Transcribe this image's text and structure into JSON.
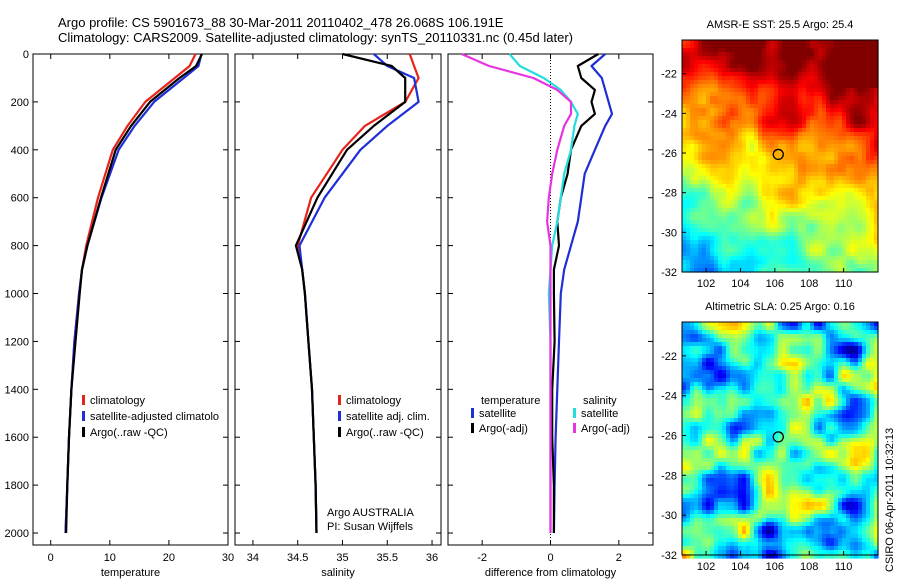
{
  "title": {
    "line1": "Argo profile: CS 5901673_88 30-Mar-2011 20110402_478 26.068S 106.191E",
    "line2": "Climatology: CARS2009. Satellite-adjusted climatology: synTS_20110331.nc (0.45d later)"
  },
  "side_label": "CSIRO 06-Apr-2011 10:32:13",
  "colors": {
    "climatology": "#e8231a",
    "satellite": "#1f2fd6",
    "argo": "#000000",
    "sal_satellite": "#22dede",
    "sal_argo": "#e834e0"
  },
  "chart_data": [
    {
      "type": "line",
      "id": "temperature",
      "xlabel": "temperature",
      "ylabel": "",
      "xlim": [
        -3,
        30
      ],
      "ylim": [
        2050,
        0
      ],
      "xticks": [
        0,
        10,
        20,
        30
      ],
      "yticks": [
        0,
        200,
        400,
        600,
        800,
        1000,
        1200,
        1400,
        1600,
        1800,
        2000
      ],
      "y": [
        0,
        50,
        100,
        200,
        300,
        400,
        600,
        800,
        900,
        1000,
        1200,
        1400,
        1600,
        1800,
        2000
      ],
      "series": [
        {
          "name": "climatology",
          "color": "#e8231a",
          "values": [
            24.5,
            23.5,
            21.0,
            16.0,
            13.0,
            10.5,
            8.0,
            6.0,
            5.3,
            4.8,
            4.0,
            3.5,
            3.1,
            2.8,
            2.5
          ]
        },
        {
          "name": "satellite-adjusted climatology",
          "color": "#1f2fd6",
          "values": [
            25.5,
            25.0,
            22.5,
            17.5,
            14.2,
            11.5,
            8.6,
            6.2,
            5.3,
            4.8,
            4.0,
            3.5,
            3.1,
            2.8,
            2.5
          ]
        },
        {
          "name": "Argo(..raw -QC)",
          "color": "#000000",
          "values": [
            25.6,
            24.6,
            21.8,
            16.8,
            13.6,
            11.0,
            8.5,
            6.2,
            5.3,
            4.9,
            4.2,
            3.5,
            3.1,
            2.8,
            2.6
          ]
        }
      ],
      "legend": {
        "position": "lower-right",
        "entries": [
          "climatology",
          "satellite-adjusted climatolo",
          "Argo(..raw -QC)"
        ]
      }
    },
    {
      "type": "line",
      "id": "salinity",
      "xlabel": "salinity",
      "xlim": [
        33.8,
        36.1
      ],
      "ylim": [
        2050,
        0
      ],
      "xticks": [
        34,
        34.5,
        35,
        35.5,
        36
      ],
      "y": [
        0,
        50,
        100,
        200,
        300,
        400,
        600,
        800,
        900,
        1000,
        1200,
        1400,
        1600,
        1800,
        2000
      ],
      "series": [
        {
          "name": "climatology",
          "color": "#e8231a",
          "values": [
            35.75,
            35.8,
            35.85,
            35.7,
            35.25,
            35.0,
            34.65,
            34.5,
            34.55,
            34.58,
            34.62,
            34.66,
            34.68,
            34.7,
            34.71
          ]
        },
        {
          "name": "satellite adj. clim.",
          "color": "#1f2fd6",
          "values": [
            35.35,
            35.5,
            35.8,
            35.85,
            35.5,
            35.2,
            34.8,
            34.52,
            34.55,
            34.58,
            34.62,
            34.66,
            34.68,
            34.7,
            34.71
          ]
        },
        {
          "name": "Argo(..raw -QC)",
          "color": "#000000",
          "values": [
            35.0,
            35.55,
            35.7,
            35.7,
            35.35,
            35.05,
            34.72,
            34.48,
            34.55,
            34.58,
            34.62,
            34.66,
            34.68,
            34.7,
            34.71
          ]
        }
      ],
      "legend": {
        "position": "lower-right",
        "entries": [
          "climatology",
          "satellite adj. clim.",
          "Argo(..raw -QC)"
        ]
      },
      "annotation": [
        "Argo AUSTRALIA",
        "PI: Susan Wijffels"
      ]
    },
    {
      "type": "line",
      "id": "difference",
      "xlabel": "difference from climatology",
      "xlim": [
        -3,
        3
      ],
      "ylim": [
        2050,
        0
      ],
      "xticks": [
        -2,
        0,
        2
      ],
      "y": [
        0,
        50,
        100,
        150,
        200,
        250,
        300,
        400,
        500,
        600,
        700,
        800,
        900,
        1000,
        1200,
        1400,
        1600,
        1800,
        2000
      ],
      "series": [
        {
          "name": "temperature satellite",
          "color": "#1f2fd6",
          "values": [
            1.6,
            1.2,
            1.5,
            1.6,
            1.7,
            1.8,
            1.6,
            1.3,
            1.0,
            0.9,
            0.8,
            0.6,
            0.4,
            0.3,
            0.25,
            0.2,
            0.15,
            0.12,
            0.1
          ]
        },
        {
          "name": "temperature Argo(-adj)",
          "color": "#000000",
          "values": [
            1.4,
            0.8,
            0.9,
            1.3,
            1.2,
            1.3,
            0.9,
            0.6,
            0.5,
            0.3,
            0.2,
            0.25,
            0.1,
            0.1,
            0.12,
            0.05,
            0.05,
            0.1,
            0.1
          ]
        },
        {
          "name": "salinity satellite",
          "color": "#22dede",
          "values": [
            -1.2,
            -0.9,
            -0.2,
            0.3,
            0.6,
            0.8,
            0.7,
            0.6,
            0.4,
            0.3,
            0.2,
            0.05,
            0.0,
            -0.05,
            0.0,
            0.0,
            0.0,
            0.0,
            0.0
          ]
        },
        {
          "name": "salinity Argo(-adj)",
          "color": "#e834e0",
          "values": [
            -2.6,
            -1.8,
            -0.5,
            0.2,
            0.6,
            0.6,
            0.4,
            0.2,
            0.05,
            -0.05,
            -0.1,
            0.0,
            0.0,
            0.0,
            0.0,
            0.0,
            0.0,
            0.0,
            0.0
          ]
        }
      ],
      "legend": {
        "position": "lower-left",
        "headers": [
          "temperature",
          "salinity"
        ],
        "entries": [
          "satellite",
          "Argo(-adj)",
          "satellite",
          "Argo(-adj)"
        ]
      }
    },
    {
      "type": "heatmap",
      "id": "sst",
      "title": "AMSR-E SST: 25.5 Argo: 25.4",
      "xlim": [
        100.6,
        112.0
      ],
      "ylim": [
        -32,
        -20.3
      ],
      "xticks": [
        102,
        104,
        106,
        108,
        110
      ],
      "yticks": [
        -22,
        -24,
        -26,
        -28,
        -30,
        -32
      ],
      "marker": {
        "lon": 106.2,
        "lat": -26.07
      }
    },
    {
      "type": "heatmap",
      "id": "sla",
      "title": "Altimetric SLA: 0.25 Argo: 0.16",
      "xlim": [
        100.6,
        112.0
      ],
      "ylim": [
        -32,
        -20.3
      ],
      "xticks": [
        102,
        104,
        106,
        108,
        110
      ],
      "yticks": [
        -22,
        -24,
        -26,
        -28,
        -30,
        -32
      ],
      "marker": {
        "lon": 106.2,
        "lat": -26.07
      }
    }
  ]
}
